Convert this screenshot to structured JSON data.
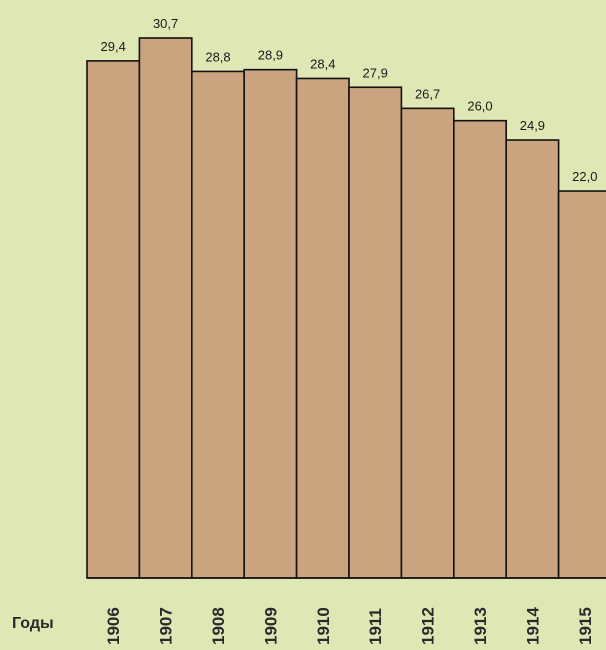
{
  "chart_data": {
    "type": "bar",
    "x_label": "Годы",
    "categories": [
      "1906",
      "1907",
      "1908",
      "1909",
      "1910",
      "1911",
      "1912",
      "1913",
      "1914",
      "1915"
    ],
    "values": [
      29.4,
      30.7,
      28.8,
      28.9,
      28.4,
      27.9,
      26.7,
      26.0,
      24.9,
      22.0
    ],
    "value_labels": [
      "29,4",
      "30,7",
      "28,8",
      "28,9",
      "28,4",
      "27,9",
      "26,7",
      "26,0",
      "24,9",
      "22,0"
    ],
    "color": "#c9a47e"
  }
}
